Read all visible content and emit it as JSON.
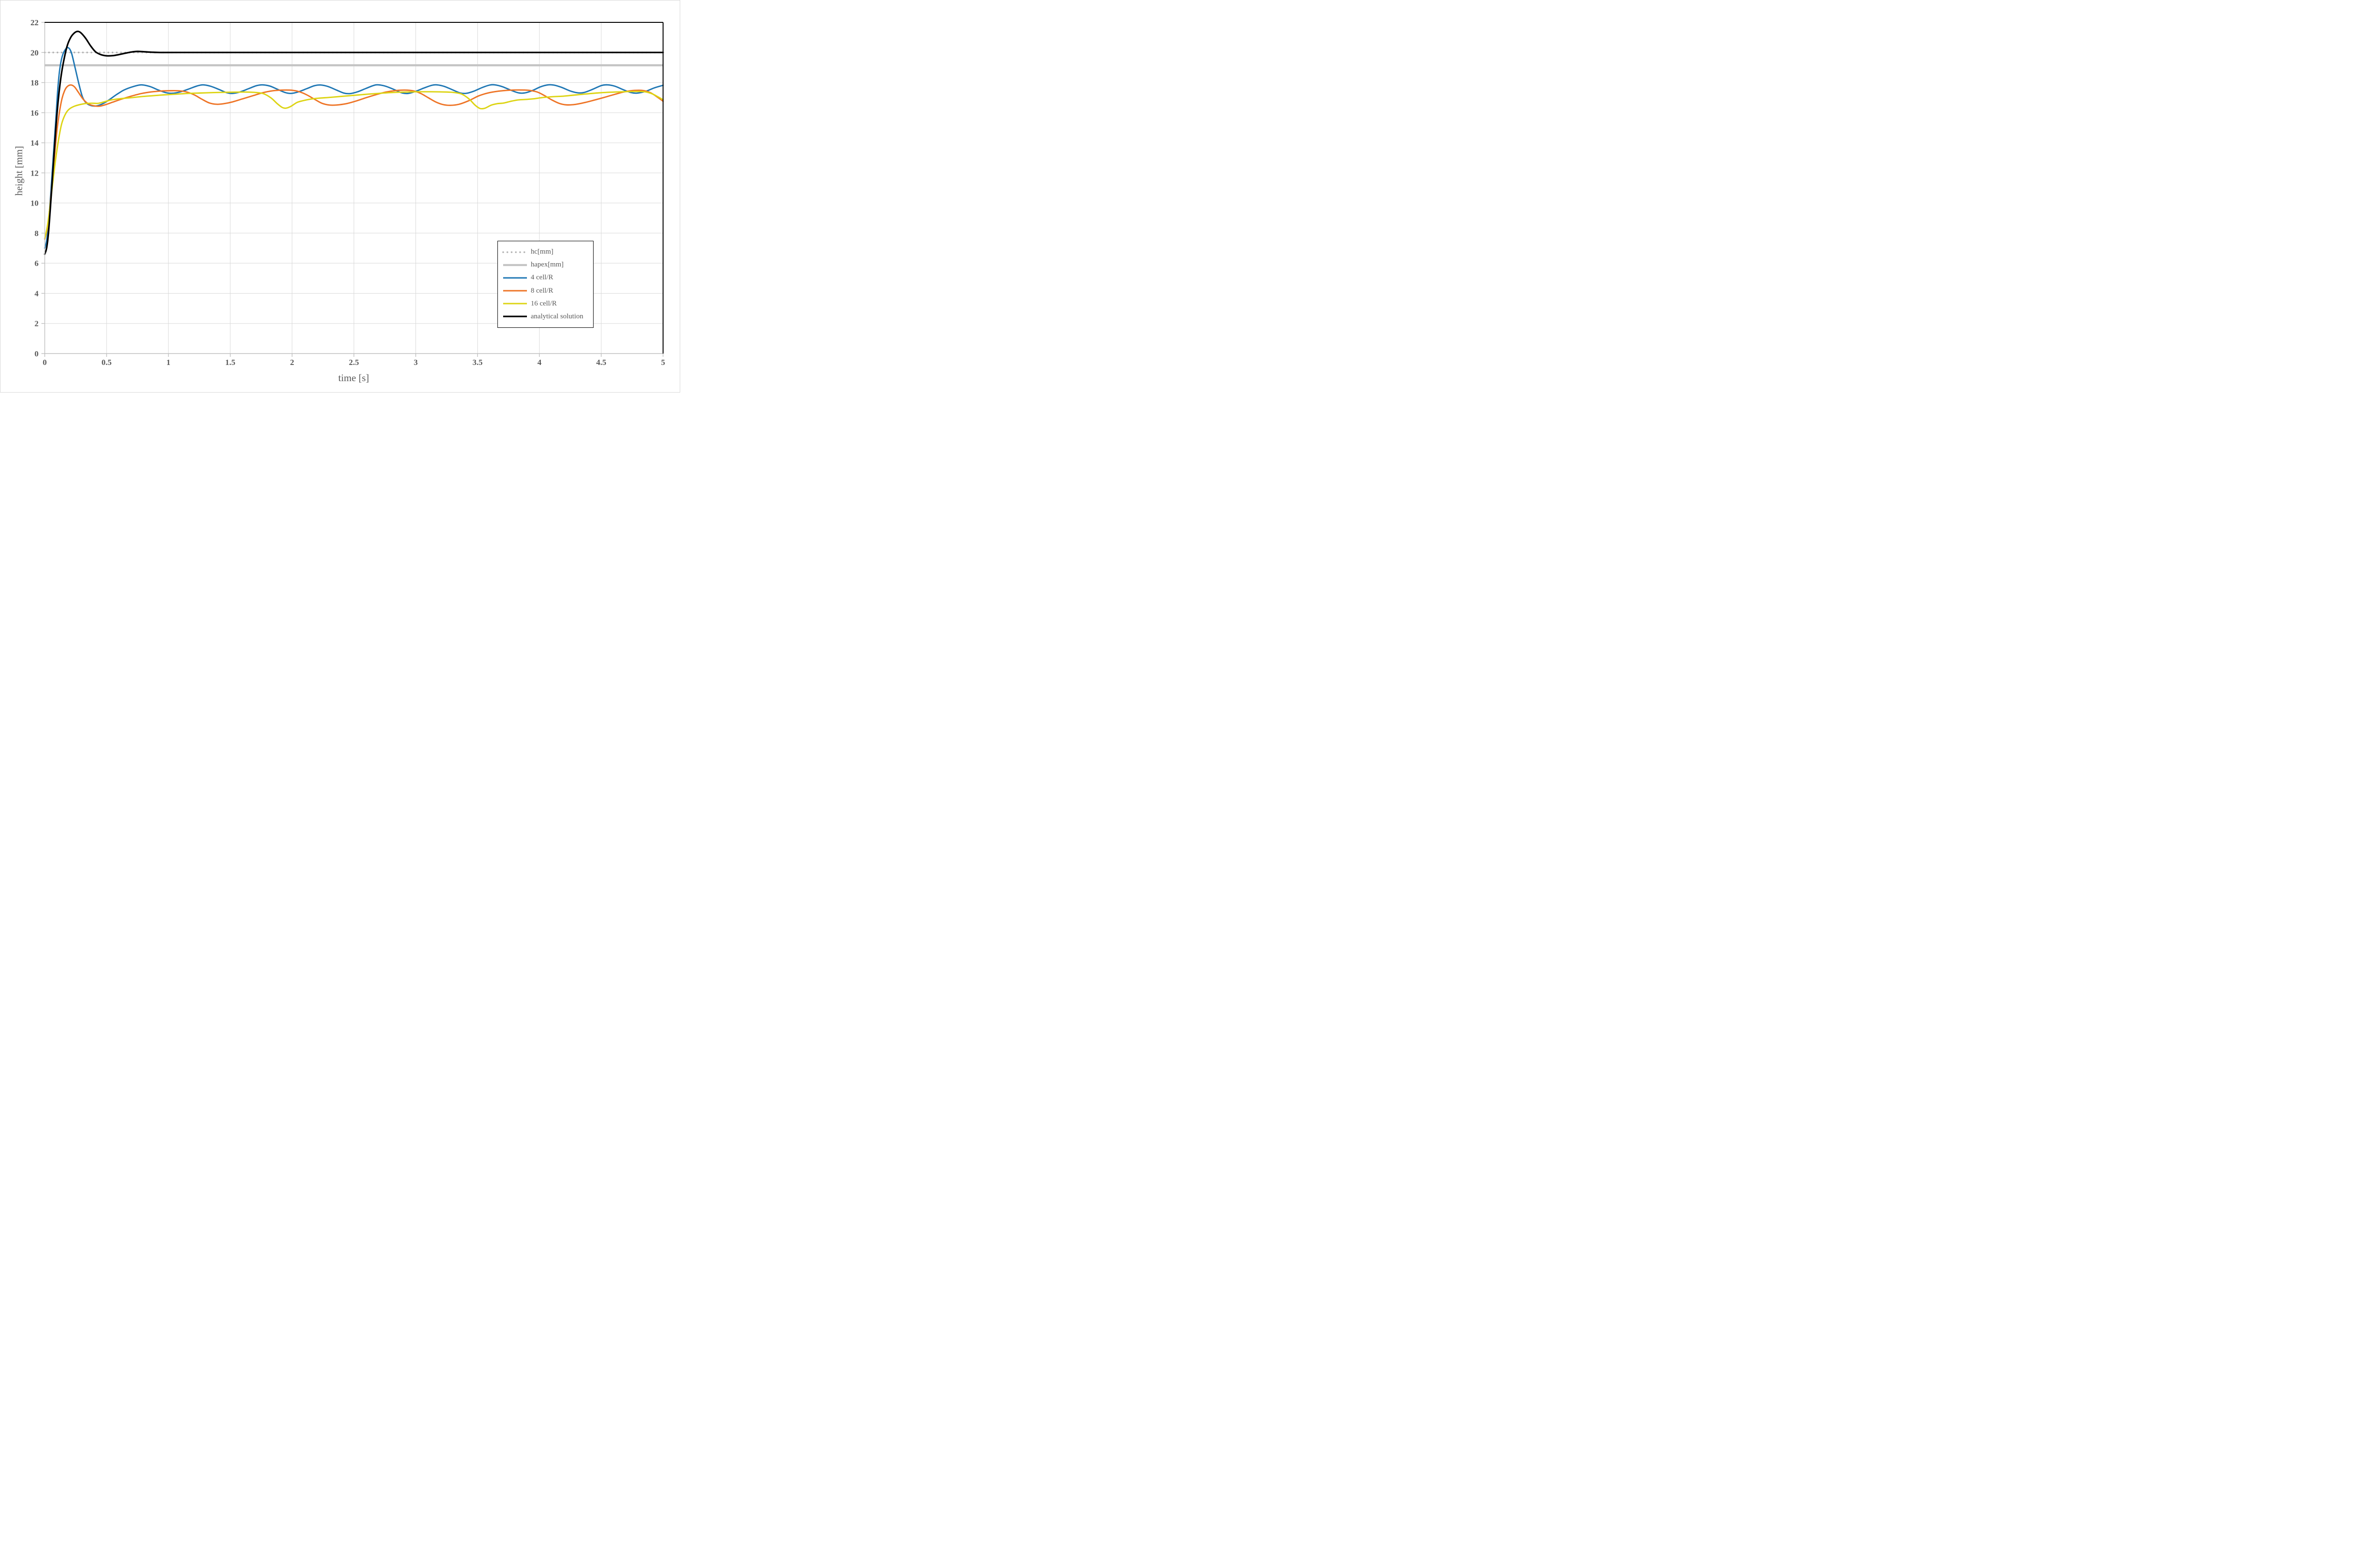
{
  "axes": {
    "xlabel": "time [s]",
    "ylabel": "height [mm]"
  },
  "colors": {
    "grid": "#d9d9d9",
    "axis_line": "#bfbfbf",
    "plot_border_dark": "#000000",
    "text": "#595959",
    "page_border": "#d8d8d8",
    "background": "#ffffff"
  },
  "chart_data": {
    "type": "line",
    "title": "",
    "xlabel": "time [s]",
    "ylabel": "height [mm]",
    "xlim": [
      0,
      5
    ],
    "ylim": [
      0,
      22
    ],
    "grid": true,
    "legend_position": "inside-lower-right",
    "xtick_values": [
      0,
      0.5,
      1,
      1.5,
      2,
      2.5,
      3,
      3.5,
      4,
      4.5,
      5
    ],
    "xtick_labels": [
      "0",
      "0.5",
      "1",
      "1.5",
      "2",
      "2.5",
      "3",
      "3.5",
      "4",
      "4.5",
      "5"
    ],
    "ytick_values": [
      0,
      2,
      4,
      6,
      8,
      10,
      12,
      14,
      16,
      18,
      20,
      22
    ],
    "ytick_labels": [
      "0",
      "2",
      "4",
      "6",
      "8",
      "10",
      "12",
      "14",
      "16",
      "18",
      "20",
      "22"
    ],
    "series": [
      {
        "id": "hc",
        "name": "hc[mm]",
        "kind": "hline",
        "value": 20,
        "color": "#b3b3b3",
        "style": "dotted",
        "width": 3.6
      },
      {
        "id": "hapex",
        "name": "hapex[mm]",
        "kind": "hline",
        "value": 19.15,
        "color": "#c4c4c4",
        "style": "solid",
        "width": 4.3
      },
      {
        "id": "cell4",
        "name": "4 cell/R",
        "kind": "curve",
        "color": "#1f77b4",
        "style": "solid",
        "width": 2.9,
        "points": [
          [
            0,
            7.0
          ],
          [
            0.015,
            7.5
          ],
          [
            0.03,
            8.6
          ],
          [
            0.05,
            10.8
          ],
          [
            0.07,
            13.2
          ],
          [
            0.09,
            15.6
          ],
          [
            0.105,
            17.5
          ],
          [
            0.12,
            18.8
          ],
          [
            0.14,
            19.7
          ],
          [
            0.165,
            20.18
          ],
          [
            0.19,
            20.32
          ],
          [
            0.215,
            20.0
          ],
          [
            0.245,
            19.0
          ],
          [
            0.275,
            17.95
          ],
          [
            0.305,
            17.05
          ],
          [
            0.335,
            16.65
          ],
          [
            0.375,
            16.47
          ],
          [
            0.42,
            16.45
          ],
          [
            0.47,
            16.6
          ],
          [
            0.52,
            16.85
          ],
          [
            0.58,
            17.2
          ],
          [
            0.64,
            17.5
          ],
          [
            0.71,
            17.72
          ],
          [
            0.78,
            17.85
          ],
          [
            0.85,
            17.74
          ],
          [
            0.92,
            17.5
          ],
          [
            0.98,
            17.33
          ],
          [
            1.03,
            17.29
          ],
          [
            1.09,
            17.37
          ],
          [
            1.16,
            17.56
          ],
          [
            1.23,
            17.77
          ],
          [
            1.28,
            17.85
          ],
          [
            1.34,
            17.76
          ],
          [
            1.41,
            17.54
          ],
          [
            1.47,
            17.33
          ],
          [
            1.52,
            17.28
          ],
          [
            1.58,
            17.38
          ],
          [
            1.65,
            17.6
          ],
          [
            1.71,
            17.79
          ],
          [
            1.76,
            17.85
          ],
          [
            1.82,
            17.77
          ],
          [
            1.88,
            17.56
          ],
          [
            1.94,
            17.35
          ],
          [
            1.99,
            17.28
          ],
          [
            2.05,
            17.38
          ],
          [
            2.12,
            17.6
          ],
          [
            2.18,
            17.79
          ],
          [
            2.23,
            17.84
          ],
          [
            2.29,
            17.74
          ],
          [
            2.36,
            17.5
          ],
          [
            2.42,
            17.3
          ],
          [
            2.47,
            17.27
          ],
          [
            2.53,
            17.39
          ],
          [
            2.6,
            17.62
          ],
          [
            2.66,
            17.81
          ],
          [
            2.7,
            17.85
          ],
          [
            2.76,
            17.75
          ],
          [
            2.83,
            17.52
          ],
          [
            2.89,
            17.31
          ],
          [
            2.94,
            17.28
          ],
          [
            3.0,
            17.42
          ],
          [
            3.07,
            17.65
          ],
          [
            3.13,
            17.82
          ],
          [
            3.17,
            17.85
          ],
          [
            3.23,
            17.75
          ],
          [
            3.3,
            17.51
          ],
          [
            3.36,
            17.31
          ],
          [
            3.41,
            17.29
          ],
          [
            3.47,
            17.43
          ],
          [
            3.54,
            17.68
          ],
          [
            3.6,
            17.84
          ],
          [
            3.64,
            17.85
          ],
          [
            3.7,
            17.73
          ],
          [
            3.77,
            17.49
          ],
          [
            3.83,
            17.32
          ],
          [
            3.88,
            17.31
          ],
          [
            3.94,
            17.46
          ],
          [
            4.01,
            17.72
          ],
          [
            4.07,
            17.85
          ],
          [
            4.12,
            17.83
          ],
          [
            4.18,
            17.68
          ],
          [
            4.25,
            17.44
          ],
          [
            4.31,
            17.32
          ],
          [
            4.36,
            17.34
          ],
          [
            4.43,
            17.55
          ],
          [
            4.5,
            17.8
          ],
          [
            4.55,
            17.85
          ],
          [
            4.61,
            17.76
          ],
          [
            4.68,
            17.52
          ],
          [
            4.74,
            17.34
          ],
          [
            4.79,
            17.3
          ],
          [
            4.86,
            17.42
          ],
          [
            4.93,
            17.65
          ],
          [
            5.0,
            17.82
          ]
        ]
      },
      {
        "id": "cell8",
        "name": "8 cell/R",
        "kind": "curve",
        "color": "#ee7426",
        "style": "solid",
        "width": 2.9,
        "points": [
          [
            0,
            7.6
          ],
          [
            0.02,
            8.3
          ],
          [
            0.04,
            9.6
          ],
          [
            0.06,
            11.4
          ],
          [
            0.08,
            13.2
          ],
          [
            0.1,
            14.9
          ],
          [
            0.12,
            16.1
          ],
          [
            0.14,
            16.95
          ],
          [
            0.16,
            17.45
          ],
          [
            0.18,
            17.72
          ],
          [
            0.21,
            17.84
          ],
          [
            0.24,
            17.72
          ],
          [
            0.27,
            17.38
          ],
          [
            0.31,
            16.9
          ],
          [
            0.35,
            16.6
          ],
          [
            0.39,
            16.47
          ],
          [
            0.44,
            16.43
          ],
          [
            0.49,
            16.53
          ],
          [
            0.55,
            16.7
          ],
          [
            0.62,
            16.9
          ],
          [
            0.7,
            17.1
          ],
          [
            0.78,
            17.27
          ],
          [
            0.86,
            17.38
          ],
          [
            0.94,
            17.44
          ],
          [
            1.02,
            17.46
          ],
          [
            1.09,
            17.45
          ],
          [
            1.15,
            17.37
          ],
          [
            1.21,
            17.18
          ],
          [
            1.27,
            16.9
          ],
          [
            1.33,
            16.65
          ],
          [
            1.39,
            16.56
          ],
          [
            1.45,
            16.6
          ],
          [
            1.52,
            16.72
          ],
          [
            1.6,
            16.92
          ],
          [
            1.68,
            17.12
          ],
          [
            1.76,
            17.32
          ],
          [
            1.84,
            17.45
          ],
          [
            1.92,
            17.5
          ],
          [
            2.0,
            17.49
          ],
          [
            2.06,
            17.39
          ],
          [
            2.12,
            17.18
          ],
          [
            2.18,
            16.9
          ],
          [
            2.24,
            16.63
          ],
          [
            2.3,
            16.51
          ],
          [
            2.36,
            16.51
          ],
          [
            2.44,
            16.6
          ],
          [
            2.52,
            16.78
          ],
          [
            2.6,
            17.0
          ],
          [
            2.68,
            17.2
          ],
          [
            2.76,
            17.37
          ],
          [
            2.84,
            17.47
          ],
          [
            2.91,
            17.5
          ],
          [
            2.98,
            17.45
          ],
          [
            3.04,
            17.28
          ],
          [
            3.1,
            17.0
          ],
          [
            3.16,
            16.72
          ],
          [
            3.22,
            16.54
          ],
          [
            3.28,
            16.49
          ],
          [
            3.35,
            16.56
          ],
          [
            3.43,
            16.8
          ],
          [
            3.51,
            17.12
          ],
          [
            3.59,
            17.32
          ],
          [
            3.67,
            17.43
          ],
          [
            3.75,
            17.49
          ],
          [
            3.83,
            17.51
          ],
          [
            3.91,
            17.49
          ],
          [
            3.98,
            17.38
          ],
          [
            4.04,
            17.14
          ],
          [
            4.1,
            16.85
          ],
          [
            4.16,
            16.62
          ],
          [
            4.22,
            16.52
          ],
          [
            4.29,
            16.55
          ],
          [
            4.37,
            16.68
          ],
          [
            4.45,
            16.85
          ],
          [
            4.53,
            17.03
          ],
          [
            4.61,
            17.22
          ],
          [
            4.69,
            17.39
          ],
          [
            4.77,
            17.48
          ],
          [
            4.84,
            17.47
          ],
          [
            4.9,
            17.32
          ],
          [
            4.96,
            17.0
          ],
          [
            5.0,
            16.76
          ]
        ]
      },
      {
        "id": "cell16",
        "name": "16 cell/R",
        "kind": "curve",
        "color": "#ddd414",
        "style": "solid",
        "width": 2.9,
        "points": [
          [
            0,
            7.65
          ],
          [
            0.02,
            8.4
          ],
          [
            0.04,
            9.6
          ],
          [
            0.06,
            11.0
          ],
          [
            0.08,
            12.4
          ],
          [
            0.1,
            13.6
          ],
          [
            0.12,
            14.6
          ],
          [
            0.14,
            15.35
          ],
          [
            0.17,
            15.95
          ],
          [
            0.2,
            16.25
          ],
          [
            0.24,
            16.43
          ],
          [
            0.28,
            16.53
          ],
          [
            0.33,
            16.61
          ],
          [
            0.38,
            16.63
          ],
          [
            0.43,
            16.62
          ],
          [
            0.48,
            16.72
          ],
          [
            0.54,
            16.85
          ],
          [
            0.61,
            16.93
          ],
          [
            0.69,
            16.99
          ],
          [
            0.77,
            17.06
          ],
          [
            0.86,
            17.12
          ],
          [
            0.96,
            17.18
          ],
          [
            1.06,
            17.23
          ],
          [
            1.16,
            17.28
          ],
          [
            1.27,
            17.31
          ],
          [
            1.38,
            17.34
          ],
          [
            1.5,
            17.36
          ],
          [
            1.62,
            17.37
          ],
          [
            1.71,
            17.34
          ],
          [
            1.77,
            17.26
          ],
          [
            1.83,
            16.98
          ],
          [
            1.88,
            16.6
          ],
          [
            1.92,
            16.35
          ],
          [
            1.95,
            16.3
          ],
          [
            1.99,
            16.42
          ],
          [
            2.04,
            16.68
          ],
          [
            2.09,
            16.8
          ],
          [
            2.15,
            16.9
          ],
          [
            2.21,
            16.96
          ],
          [
            2.31,
            17.02
          ],
          [
            2.41,
            17.09
          ],
          [
            2.51,
            17.16
          ],
          [
            2.61,
            17.23
          ],
          [
            2.71,
            17.29
          ],
          [
            2.81,
            17.34
          ],
          [
            2.91,
            17.37
          ],
          [
            3.01,
            17.39
          ],
          [
            3.11,
            17.39
          ],
          [
            3.21,
            17.38
          ],
          [
            3.3,
            17.35
          ],
          [
            3.37,
            17.24
          ],
          [
            3.43,
            16.92
          ],
          [
            3.48,
            16.5
          ],
          [
            3.52,
            16.28
          ],
          [
            3.56,
            16.3
          ],
          [
            3.61,
            16.5
          ],
          [
            3.66,
            16.6
          ],
          [
            3.71,
            16.64
          ],
          [
            3.77,
            16.76
          ],
          [
            3.83,
            16.85
          ],
          [
            3.89,
            16.88
          ],
          [
            3.95,
            16.92
          ],
          [
            4.02,
            17.0
          ],
          [
            4.1,
            17.06
          ],
          [
            4.18,
            17.09
          ],
          [
            4.27,
            17.16
          ],
          [
            4.37,
            17.24
          ],
          [
            4.47,
            17.31
          ],
          [
            4.57,
            17.36
          ],
          [
            4.67,
            17.39
          ],
          [
            4.77,
            17.41
          ],
          [
            4.85,
            17.39
          ],
          [
            4.91,
            17.26
          ],
          [
            4.96,
            17.05
          ],
          [
            5.0,
            16.86
          ]
        ]
      },
      {
        "id": "analytical",
        "name": "analytical solution",
        "kind": "curve",
        "color": "#000000",
        "style": "solid",
        "width": 3.3,
        "points": [
          [
            0,
            6.6
          ],
          [
            0.015,
            7.0
          ],
          [
            0.03,
            8.0
          ],
          [
            0.05,
            10.2
          ],
          [
            0.07,
            12.6
          ],
          [
            0.09,
            15.0
          ],
          [
            0.11,
            16.9
          ],
          [
            0.13,
            18.3
          ],
          [
            0.15,
            19.3
          ],
          [
            0.18,
            20.4
          ],
          [
            0.21,
            21.0
          ],
          [
            0.24,
            21.3
          ],
          [
            0.265,
            21.4
          ],
          [
            0.29,
            21.32
          ],
          [
            0.33,
            20.95
          ],
          [
            0.37,
            20.45
          ],
          [
            0.41,
            20.05
          ],
          [
            0.45,
            19.87
          ],
          [
            0.5,
            19.78
          ],
          [
            0.55,
            19.79
          ],
          [
            0.6,
            19.86
          ],
          [
            0.65,
            19.95
          ],
          [
            0.7,
            20.03
          ],
          [
            0.75,
            20.07
          ],
          [
            0.8,
            20.05
          ],
          [
            0.86,
            20.02
          ],
          [
            0.93,
            20.0
          ],
          [
            1.1,
            20.0
          ],
          [
            1.5,
            20.0
          ],
          [
            2.0,
            20.0
          ],
          [
            2.5,
            20.0
          ],
          [
            3.0,
            20.0
          ],
          [
            3.5,
            20.0
          ],
          [
            4.0,
            20.0
          ],
          [
            4.5,
            20.0
          ],
          [
            5.0,
            20.0
          ]
        ]
      }
    ]
  }
}
